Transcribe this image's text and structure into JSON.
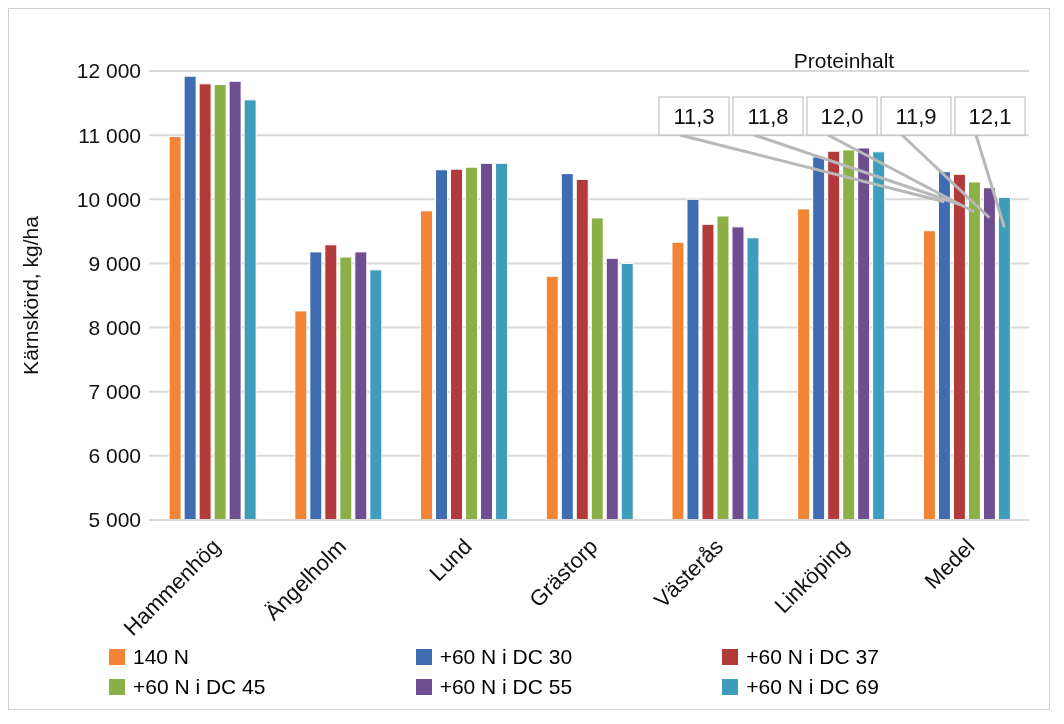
{
  "chart_data": {
    "type": "bar",
    "ylabel": "Kärnskörd, kg/ha",
    "categories": [
      "Hammenhög",
      "Ängelholm",
      "Lund",
      "Grästorp",
      "Västerås",
      "Linköping",
      "Medel"
    ],
    "series": [
      {
        "name": "140 N",
        "color": "#f28535",
        "values": [
          10980,
          8260,
          9820,
          8800,
          9330,
          9850,
          9510
        ]
      },
      {
        "name": "+60 N i DC 30",
        "color": "#3f6cb0",
        "values": [
          11920,
          9180,
          10460,
          10400,
          10000,
          10660,
          10430
        ]
      },
      {
        "name": "+60 N i DC 37",
        "color": "#b33a3b",
        "values": [
          11800,
          9290,
          10470,
          10310,
          9610,
          10750,
          10390
        ]
      },
      {
        "name": "+60 N i DC 45",
        "color": "#8cb048",
        "values": [
          11790,
          9100,
          10500,
          9710,
          9740,
          10770,
          10270
        ]
      },
      {
        "name": "+60 N i DC 55",
        "color": "#6e4e91",
        "values": [
          11840,
          9180,
          10560,
          9080,
          9570,
          10800,
          10180
        ]
      },
      {
        "name": "+60 N i DC 69",
        "color": "#3e9dbb",
        "values": [
          11550,
          8900,
          10560,
          9000,
          9400,
          10740,
          10030
        ]
      }
    ],
    "ylim": [
      5000,
      12000
    ],
    "yticks": [
      {
        "value": 5000,
        "label": "5 000"
      },
      {
        "value": 6000,
        "label": "6 000"
      },
      {
        "value": 7000,
        "label": "7 000"
      },
      {
        "value": 8000,
        "label": "8 000"
      },
      {
        "value": 9000,
        "label": "9 000"
      },
      {
        "value": 10000,
        "label": "10 000"
      },
      {
        "value": 11000,
        "label": "11 000"
      },
      {
        "value": 12000,
        "label": "12 000"
      }
    ],
    "grid": "y",
    "legend": "bottom",
    "annotations": [
      "Proteinhalt",
      "11,3",
      "11,8",
      "12,0",
      "11,9",
      "12,1"
    ]
  }
}
